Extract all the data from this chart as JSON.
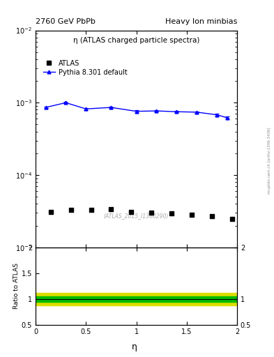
{
  "title_left": "2760 GeV PbPb",
  "title_right": "Heavy Ion minbias",
  "panel_title": "η (ATLAS charged particle spectra)",
  "watermark": "(ATLAS_2015_I1360290)",
  "right_label": "mcplots.cern.ch [arXiv:1306.3436]",
  "atlas_x": [
    0.15,
    0.35,
    0.55,
    0.75,
    0.95,
    1.15,
    1.35,
    1.55,
    1.75,
    1.95
  ],
  "atlas_y": [
    3.1e-05,
    3.3e-05,
    3.3e-05,
    3.35e-05,
    3.1e-05,
    3e-05,
    2.95e-05,
    2.85e-05,
    2.7e-05,
    2.45e-05
  ],
  "pythia_x": [
    0.1,
    0.3,
    0.5,
    0.75,
    1.0,
    1.2,
    1.4,
    1.6,
    1.8,
    1.9
  ],
  "pythia_y": [
    0.00086,
    0.001,
    0.00082,
    0.00086,
    0.00076,
    0.00077,
    0.00075,
    0.00074,
    0.00068,
    0.00062
  ],
  "pythia_yerr": [
    2.5e-05,
    2.5e-05,
    2.5e-05,
    2.5e-05,
    2e-05,
    2e-05,
    2e-05,
    2e-05,
    2e-05,
    2e-05
  ],
  "ratio_green_low": 0.95,
  "ratio_green_high": 1.05,
  "ratio_yellow_low": 0.88,
  "ratio_yellow_high": 1.12,
  "ratio_line_y": 1.0,
  "xlim": [
    0.0,
    2.0
  ],
  "ylim_main": [
    1e-05,
    0.01
  ],
  "ylim_ratio": [
    0.5,
    2.0
  ],
  "atlas_color": "#000000",
  "pythia_color": "#0000ff",
  "green_color": "#00bb00",
  "yellow_color": "#dddd00",
  "ylabel_ratio": "Ratio to ATLAS"
}
